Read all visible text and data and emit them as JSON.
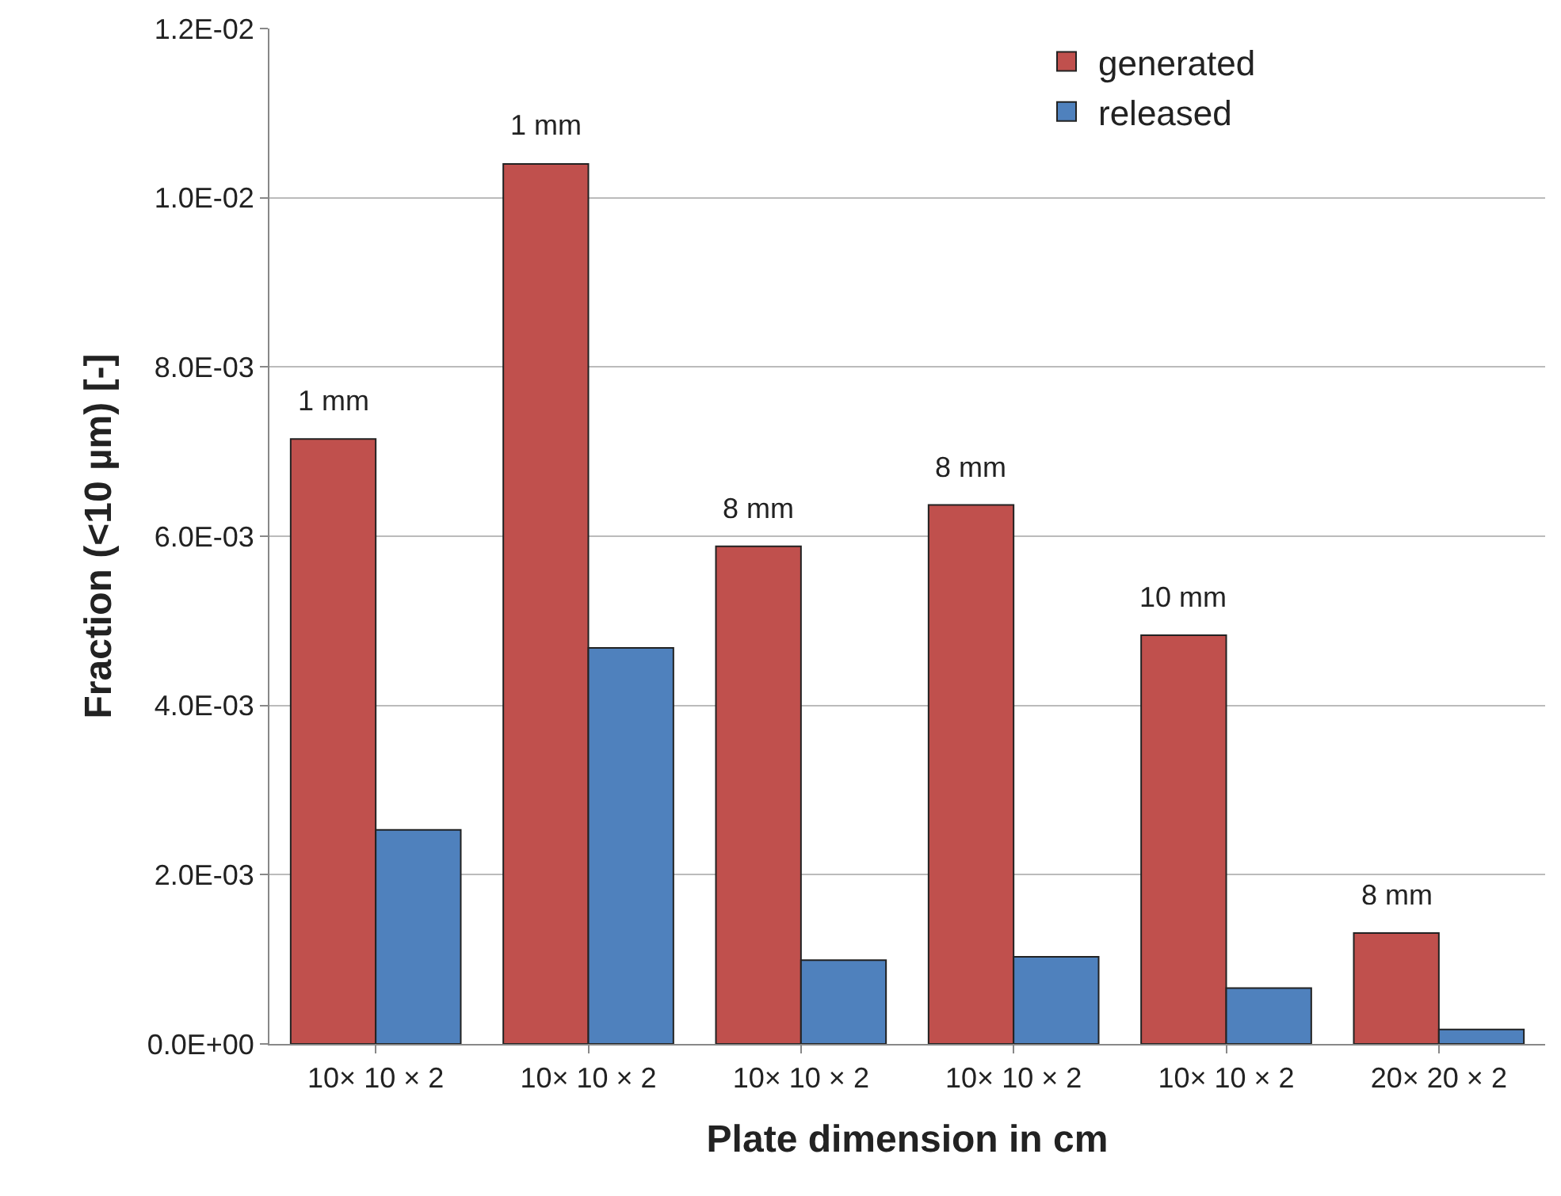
{
  "chart_data": {
    "type": "bar",
    "xlabel": "Plate dimension in cm",
    "ylabel": "Fraction (<10 µm) [-]",
    "categories": [
      "10× 10 × 2",
      "10× 10 × 2",
      "10× 10 × 2",
      "10× 10 × 2",
      "10× 10 × 2",
      "20× 20 × 2"
    ],
    "series": [
      {
        "name": "generated",
        "color": "#c0504d",
        "values": [
          0.00715,
          0.0104,
          0.00588,
          0.00637,
          0.00483,
          0.00131
        ]
      },
      {
        "name": "released",
        "color": "#4f81bd",
        "values": [
          0.00253,
          0.00468,
          0.00099,
          0.00103,
          0.00066,
          0.00017
        ]
      }
    ],
    "ylim": [
      0,
      0.012
    ],
    "yticks": [
      {
        "value": 0,
        "label": "0.0E+00"
      },
      {
        "value": 0.002,
        "label": "2.0E-03"
      },
      {
        "value": 0.004,
        "label": "4.0E-03"
      },
      {
        "value": 0.006,
        "label": "6.0E-03"
      },
      {
        "value": 0.008,
        "label": "8.0E-03"
      },
      {
        "value": 0.01,
        "label": "1.0E-02"
      },
      {
        "value": 0.012,
        "label": "1.2E-02"
      }
    ],
    "annotations": [
      {
        "text": "1 mm",
        "y": 0.00715
      },
      {
        "text": "1 mm",
        "y": 0.0104
      },
      {
        "text": "8 mm",
        "y": 0.00588
      },
      {
        "text": "8 mm",
        "y": 0.00637
      },
      {
        "text": "10 mm",
        "y": 0.00483
      },
      {
        "text": "8 mm",
        "y": 0.00131
      }
    ],
    "grid": "y",
    "legend": "top right"
  }
}
